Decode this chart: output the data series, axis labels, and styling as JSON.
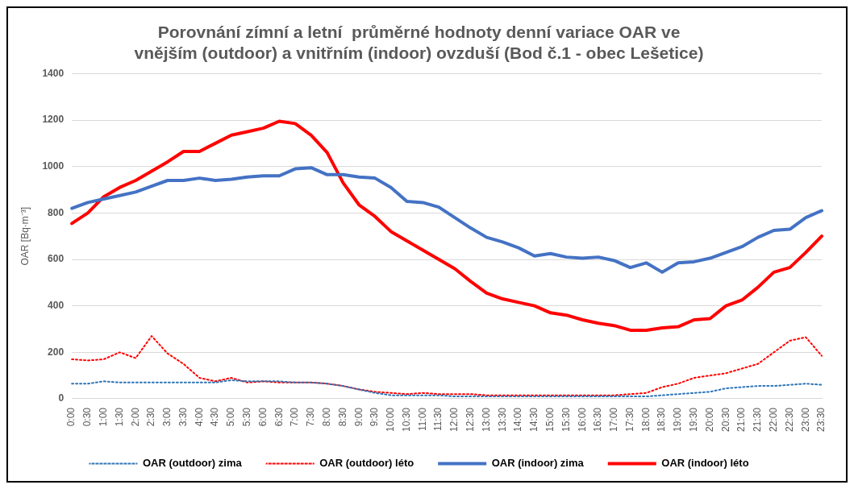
{
  "chart_data": {
    "type": "line",
    "title": [
      "Porovnání zímní a letní  průměrné hodnoty denní variace OAR ve",
      "vnějším (outdoor) a vnitřním (indoor) ovzduší (Bod č.1 - obec Lešetice)"
    ],
    "ylabel": "OAR [Bq·m⁻³]",
    "categories": [
      "0:00",
      "0:30",
      "1:00",
      "1:30",
      "2:00",
      "2:30",
      "3:00",
      "3:30",
      "4:00",
      "4:30",
      "5:00",
      "5:30",
      "6:00",
      "6:30",
      "7:00",
      "7:30",
      "8:00",
      "8:30",
      "9:00",
      "9:30",
      "10:00",
      "10:30",
      "11:00",
      "11:30",
      "12:00",
      "12:30",
      "13:00",
      "13:30",
      "14:00",
      "14:30",
      "15:00",
      "15:30",
      "16:00",
      "16:30",
      "17:00",
      "17:30",
      "18:00",
      "18:30",
      "19:00",
      "19:30",
      "20:00",
      "20:30",
      "21:00",
      "21:30",
      "22:00",
      "22:30",
      "23:00",
      "23:30"
    ],
    "series": [
      {
        "name": "OAR (outdoor) zima",
        "color": "#2e75b6",
        "line_style": "dotted",
        "values": [
          65,
          65,
          75,
          70,
          70,
          70,
          70,
          70,
          70,
          70,
          80,
          75,
          75,
          75,
          70,
          70,
          65,
          55,
          40,
          25,
          15,
          15,
          15,
          15,
          10,
          10,
          10,
          10,
          10,
          10,
          10,
          10,
          10,
          10,
          10,
          10,
          10,
          15,
          20,
          25,
          30,
          45,
          50,
          55,
          55,
          60,
          65,
          60
        ]
      },
      {
        "name": "OAR (outdoor) léto",
        "color": "#ff0000",
        "line_style": "dotted",
        "values": [
          170,
          165,
          170,
          200,
          175,
          270,
          195,
          150,
          90,
          75,
          90,
          70,
          75,
          70,
          70,
          70,
          65,
          55,
          40,
          30,
          25,
          20,
          25,
          20,
          20,
          20,
          15,
          15,
          15,
          15,
          15,
          15,
          15,
          15,
          15,
          20,
          25,
          50,
          65,
          90,
          100,
          110,
          130,
          150,
          200,
          250,
          265,
          185
        ]
      },
      {
        "name": "OAR (indoor) zima",
        "color": "#4472c4",
        "line_style": "solid",
        "values": [
          820,
          845,
          860,
          875,
          890,
          915,
          940,
          940,
          950,
          940,
          945,
          955,
          960,
          960,
          990,
          995,
          965,
          965,
          955,
          950,
          910,
          850,
          845,
          825,
          780,
          735,
          695,
          675,
          650,
          615,
          625,
          610,
          605,
          610,
          595,
          565,
          585,
          545,
          585,
          590,
          605,
          630,
          655,
          695,
          725,
          730,
          780,
          810
        ]
      },
      {
        "name": "OAR (indoor) léto",
        "color": "#ff0000",
        "line_style": "solid",
        "values": [
          755,
          800,
          870,
          910,
          940,
          980,
          1020,
          1065,
          1065,
          1100,
          1135,
          1150,
          1165,
          1195,
          1185,
          1135,
          1060,
          930,
          835,
          785,
          720,
          680,
          640,
          600,
          560,
          505,
          455,
          430,
          415,
          400,
          370,
          360,
          340,
          325,
          315,
          295,
          295,
          305,
          310,
          340,
          345,
          400,
          425,
          480,
          545,
          565,
          630,
          700
        ]
      }
    ],
    "ylim": [
      0,
      1400
    ],
    "yticks": [
      0,
      200,
      400,
      600,
      800,
      1000,
      1200,
      1400
    ],
    "grid": "y",
    "legend": "bottom",
    "marker": "none"
  }
}
